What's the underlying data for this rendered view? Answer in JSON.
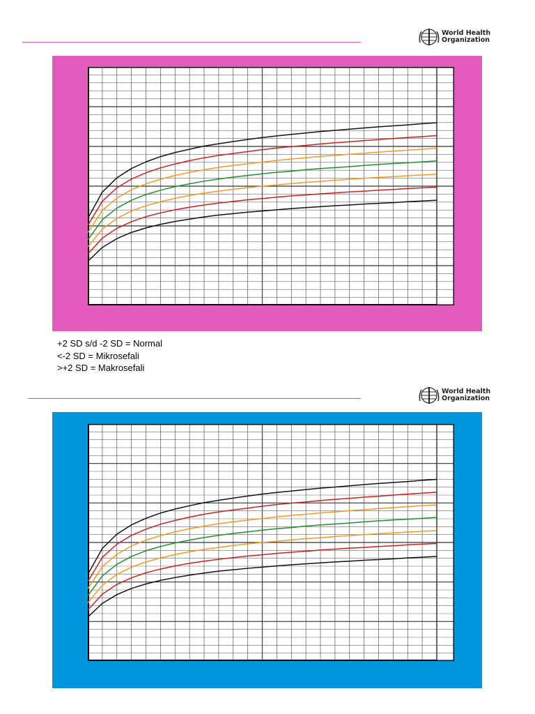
{
  "header": {
    "logo_line1": "World Health",
    "logo_line2": "Organization",
    "logo_icon": "who-emblem-icon"
  },
  "colors": {
    "top_rule": "#e85ab4",
    "bottom_rule": "#1a9fe0",
    "top_panel": "#e25bbd",
    "bottom_panel": "#0095dc",
    "sd3": "#111111",
    "sd2": "#cc1f1f",
    "sd1": "#f39a1e",
    "median": "#1f8f2e"
  },
  "legend": {
    "line1": "+2 SD s/d -2 SD = Normal",
    "line2": "<-2 SD = Mikrosefali",
    "line3": ">+2 SD = Makrosefali"
  },
  "chart_data": [
    {
      "type": "line",
      "title": "",
      "xlabel": "",
      "ylabel": "",
      "grid": true,
      "x_grid_divisions": 24,
      "y_grid_divisions": 30,
      "x": [
        0,
        1,
        2,
        3,
        4,
        5,
        6,
        7,
        8,
        9,
        10,
        11,
        12,
        13,
        14,
        15,
        16,
        17,
        18,
        19,
        20,
        21,
        22,
        23,
        24
      ],
      "series": [
        {
          "color": "#111111",
          "values": [
            36.5,
            47.5,
            53.5,
            57.4,
            60.2,
            62.4,
            64.1,
            65.5,
            66.8,
            67.8,
            68.7,
            69.6,
            70.4,
            71.1,
            71.7,
            72.3,
            72.9,
            73.4,
            73.9,
            74.4,
            74.9,
            75.3,
            75.7,
            76.2,
            76.6
          ]
        },
        {
          "color": "#cc1f1f",
          "values": [
            33.5,
            43.7,
            49.3,
            53.0,
            55.6,
            57.7,
            59.3,
            60.7,
            61.9,
            62.9,
            63.7,
            64.5,
            65.3,
            66.0,
            66.6,
            67.1,
            67.7,
            68.2,
            68.6,
            69.1,
            69.5,
            70.0,
            70.4,
            70.8,
            71.2
          ]
        },
        {
          "color": "#f39a1e",
          "values": [
            30.5,
            39.8,
            45.0,
            48.5,
            51.0,
            52.9,
            54.5,
            55.8,
            56.9,
            57.9,
            58.7,
            59.4,
            60.1,
            60.8,
            61.4,
            61.9,
            62.5,
            62.9,
            63.4,
            63.8,
            64.3,
            64.7,
            65.1,
            65.5,
            65.9
          ]
        },
        {
          "color": "#1f8f2e",
          "values": [
            27.5,
            35.9,
            40.8,
            44.1,
            46.5,
            48.3,
            49.8,
            51.0,
            52.1,
            53.0,
            53.8,
            54.5,
            55.2,
            55.8,
            56.3,
            56.9,
            57.4,
            57.8,
            58.2,
            58.7,
            59.1,
            59.5,
            59.8,
            60.2,
            60.6
          ]
        },
        {
          "color": "#f39a1e",
          "values": [
            24.5,
            32.0,
            36.5,
            39.6,
            41.8,
            43.5,
            44.9,
            46.1,
            47.1,
            47.9,
            48.7,
            49.4,
            50.0,
            50.5,
            51.1,
            51.6,
            52.0,
            52.5,
            52.9,
            53.3,
            53.7,
            54.0,
            54.4,
            54.7,
            55.0
          ]
        },
        {
          "color": "#cc1f1f",
          "values": [
            21.5,
            28.2,
            32.3,
            35.1,
            37.2,
            38.8,
            40.1,
            41.2,
            42.1,
            42.9,
            43.6,
            44.3,
            44.8,
            45.4,
            45.9,
            46.3,
            46.8,
            47.2,
            47.6,
            47.9,
            48.3,
            48.6,
            49.0,
            49.3,
            49.6
          ]
        },
        {
          "color": "#111111",
          "values": [
            18.5,
            24.3,
            28.0,
            30.6,
            32.5,
            34.0,
            35.2,
            36.2,
            37.1,
            37.9,
            38.5,
            39.1,
            39.6,
            40.1,
            40.6,
            41.0,
            41.4,
            41.8,
            42.1,
            42.5,
            42.8,
            43.1,
            43.5,
            43.8,
            44.1
          ]
        }
      ]
    },
    {
      "type": "line",
      "title": "",
      "xlabel": "",
      "ylabel": "",
      "grid": true,
      "x_grid_divisions": 24,
      "y_grid_divisions": 30,
      "x": [
        0,
        1,
        2,
        3,
        4,
        5,
        6,
        7,
        8,
        9,
        10,
        11,
        12,
        13,
        14,
        15,
        16,
        17,
        18,
        19,
        20,
        21,
        22,
        23,
        24
      ],
      "series": [
        {
          "color": "#111111",
          "values": [
            36.5,
            47.5,
            53.5,
            57.4,
            60.2,
            62.4,
            64.1,
            65.5,
            66.8,
            67.8,
            68.7,
            69.6,
            70.4,
            71.1,
            71.7,
            72.3,
            72.9,
            73.4,
            73.9,
            74.4,
            74.9,
            75.3,
            75.7,
            76.2,
            76.6
          ]
        },
        {
          "color": "#cc1f1f",
          "values": [
            33.5,
            43.7,
            49.3,
            53.0,
            55.6,
            57.7,
            59.3,
            60.7,
            61.9,
            62.9,
            63.7,
            64.5,
            65.3,
            66.0,
            66.6,
            67.1,
            67.7,
            68.2,
            68.6,
            69.1,
            69.5,
            70.0,
            70.4,
            70.8,
            71.2
          ]
        },
        {
          "color": "#f39a1e",
          "values": [
            30.5,
            39.8,
            45.0,
            48.5,
            51.0,
            52.9,
            54.5,
            55.8,
            56.9,
            57.9,
            58.7,
            59.4,
            60.1,
            60.8,
            61.4,
            61.9,
            62.5,
            62.9,
            63.4,
            63.8,
            64.3,
            64.7,
            65.1,
            65.5,
            65.9
          ]
        },
        {
          "color": "#1f8f2e",
          "values": [
            27.5,
            35.9,
            40.8,
            44.1,
            46.5,
            48.3,
            49.8,
            51.0,
            52.1,
            53.0,
            53.8,
            54.5,
            55.2,
            55.8,
            56.3,
            56.9,
            57.4,
            57.8,
            58.2,
            58.7,
            59.1,
            59.5,
            59.8,
            60.2,
            60.6
          ]
        },
        {
          "color": "#f39a1e",
          "values": [
            24.5,
            32.0,
            36.5,
            39.6,
            41.8,
            43.5,
            44.9,
            46.1,
            47.1,
            47.9,
            48.7,
            49.4,
            50.0,
            50.5,
            51.1,
            51.6,
            52.0,
            52.5,
            52.9,
            53.3,
            53.7,
            54.0,
            54.4,
            54.7,
            55.0
          ]
        },
        {
          "color": "#cc1f1f",
          "values": [
            21.5,
            28.2,
            32.3,
            35.1,
            37.2,
            38.8,
            40.1,
            41.2,
            42.1,
            42.9,
            43.6,
            44.3,
            44.8,
            45.4,
            45.9,
            46.3,
            46.8,
            47.2,
            47.6,
            47.9,
            48.3,
            48.6,
            49.0,
            49.3,
            49.6
          ]
        },
        {
          "color": "#111111",
          "values": [
            18.5,
            24.3,
            28.0,
            30.6,
            32.5,
            34.0,
            35.2,
            36.2,
            37.1,
            37.9,
            38.5,
            39.1,
            39.6,
            40.1,
            40.6,
            41.0,
            41.4,
            41.8,
            42.1,
            42.5,
            42.8,
            43.1,
            43.5,
            43.8,
            44.1
          ]
        }
      ]
    }
  ]
}
